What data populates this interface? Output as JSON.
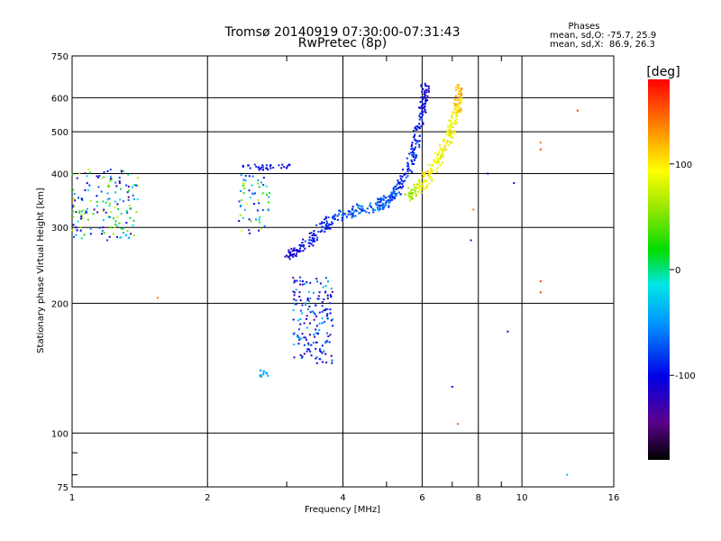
{
  "chart_data": {
    "type": "scatter",
    "title": "Tromsø 20140919 07:30:00-07:31:43",
    "subtitle": "RwPretec (8p)",
    "xlabel": "Frequency [MHz]",
    "ylabel": "Stationary phase Virtual Height [km]",
    "x_scale": "log",
    "y_scale": "log",
    "xlim": [
      1,
      16
    ],
    "ylim": [
      75,
      750
    ],
    "x_ticks": [
      1,
      2,
      4,
      6,
      8,
      10,
      16
    ],
    "x_tick_labels": [
      "1",
      "2",
      "4",
      "6",
      "8",
      "10",
      "16"
    ],
    "y_ticks": [
      75,
      100,
      200,
      300,
      400,
      500,
      600,
      750
    ],
    "y_tick_labels": [
      "75",
      "100",
      "200",
      "300",
      "400",
      "500",
      "600",
      "750"
    ],
    "grid": true,
    "phases_box": {
      "heading": "Phases",
      "line_o": "mean, sd,O: -75.7, 25.9",
      "line_x": "mean, sd,X:  86.9, 26.3"
    },
    "colorbar": {
      "label": "[deg]",
      "min": -180,
      "max": 180,
      "ticks": [
        100,
        0,
        -100
      ],
      "tick_labels": [
        "100",
        "0",
        "-100"
      ],
      "colormap": "rainbow: black-purple-blue-cyan-green-yellow-orange-red"
    },
    "series": [
      {
        "trace": "E/Es region cluster",
        "x_range": [
          1.0,
          1.4
        ],
        "y_range": [
          280,
          410
        ],
        "phase_range": [
          -140,
          80
        ],
        "count": 160,
        "points": [
          [
            1.02,
            300,
            -110
          ],
          [
            1.05,
            350,
            -60
          ],
          [
            1.08,
            380,
            -100
          ],
          [
            1.12,
            330,
            -130
          ],
          [
            1.15,
            395,
            -90
          ],
          [
            1.2,
            360,
            -40
          ],
          [
            1.25,
            310,
            20
          ],
          [
            1.3,
            345,
            -70
          ],
          [
            1.35,
            290,
            -120
          ],
          [
            1.4,
            375,
            60
          ]
        ]
      },
      {
        "trace": "cluster near 2.4 MHz",
        "x_range": [
          2.35,
          2.75
        ],
        "y_range": [
          290,
          400
        ],
        "phase_range": [
          -120,
          100
        ],
        "count": 60,
        "points": [
          [
            2.4,
            380,
            80
          ],
          [
            2.45,
            340,
            100
          ],
          [
            2.5,
            310,
            40
          ],
          [
            2.55,
            360,
            -80
          ],
          [
            2.6,
            295,
            -120
          ]
        ]
      },
      {
        "trace": "upper horizontal line near 415 km",
        "x_range": [
          2.4,
          3.1
        ],
        "y_range": [
          408,
          420
        ],
        "phase_range": [
          -120,
          -80
        ],
        "count": 35,
        "points": [
          [
            2.4,
            415,
            -100
          ],
          [
            2.6,
            414,
            -110
          ],
          [
            2.8,
            413,
            -90
          ],
          [
            3.0,
            412,
            -100
          ]
        ]
      },
      {
        "trace": "low-height spread traces",
        "x_range": [
          3.1,
          3.8
        ],
        "y_range": [
          145,
          230
        ],
        "phase_range": [
          -140,
          -30
        ],
        "count": 170,
        "points": [
          [
            3.15,
            215,
            -40
          ],
          [
            3.3,
            200,
            -50
          ],
          [
            3.45,
            190,
            -45
          ],
          [
            3.6,
            180,
            -35
          ],
          [
            3.25,
            170,
            -120
          ],
          [
            3.4,
            160,
            -90
          ],
          [
            3.5,
            150,
            -60
          ],
          [
            3.7,
            185,
            -50
          ]
        ]
      },
      {
        "trace": "short trace near 2.6 MHz",
        "x_range": [
          2.6,
          2.75
        ],
        "y_range": [
          135,
          140
        ],
        "phase_range": [
          -55,
          -35
        ],
        "count": 12,
        "points": [
          [
            2.62,
            136,
            -45
          ],
          [
            2.7,
            138,
            -45
          ]
        ]
      },
      {
        "trace": "F-region O-trace",
        "x_range": [
          3.0,
          6.2
        ],
        "y_range": [
          255,
          640
        ],
        "phase_range": [
          -120,
          -50
        ],
        "count": 420,
        "points": [
          [
            3.0,
            258,
            -110
          ],
          [
            3.2,
            265,
            -100
          ],
          [
            3.4,
            280,
            -95
          ],
          [
            3.6,
            300,
            -90
          ],
          [
            3.8,
            315,
            -80
          ],
          [
            4.0,
            322,
            -75
          ],
          [
            4.4,
            330,
            -70
          ],
          [
            4.8,
            338,
            -70
          ],
          [
            5.0,
            345,
            -75
          ],
          [
            5.3,
            370,
            -80
          ],
          [
            5.6,
            410,
            -85
          ],
          [
            5.8,
            460,
            -90
          ],
          [
            5.95,
            540,
            -95
          ],
          [
            6.05,
            600,
            -100
          ],
          [
            6.1,
            640,
            -105
          ]
        ]
      },
      {
        "trace": "F-region X-trace",
        "x_range": [
          5.6,
          7.3
        ],
        "y_range": [
          350,
          640
        ],
        "phase_range": [
          40,
          130
        ],
        "count": 260,
        "points": [
          [
            5.6,
            355,
            60
          ],
          [
            5.9,
            370,
            80
          ],
          [
            6.2,
            395,
            100
          ],
          [
            6.5,
            430,
            95
          ],
          [
            6.8,
            470,
            100
          ],
          [
            7.0,
            520,
            90
          ],
          [
            7.2,
            580,
            110
          ],
          [
            7.25,
            630,
            120
          ]
        ]
      },
      {
        "trace": "scattered isolated points",
        "x_range": [
          1.5,
          13.5
        ],
        "y_range": [
          80,
          560
        ],
        "phase_range": [
          -110,
          160
        ],
        "count": 20,
        "points": [
          [
            1.55,
            206,
            140
          ],
          [
            7.2,
            105,
            150
          ],
          [
            7.0,
            128,
            -110
          ],
          [
            8.4,
            400,
            -120
          ],
          [
            9.3,
            172,
            -120
          ],
          [
            9.6,
            380,
            -110
          ],
          [
            11.0,
            472,
            140
          ],
          [
            11.0,
            455,
            160
          ],
          [
            11.0,
            225,
            160
          ],
          [
            11.0,
            212,
            160
          ],
          [
            12.6,
            80,
            -40
          ],
          [
            13.3,
            560,
            160
          ],
          [
            7.8,
            330,
            140
          ],
          [
            7.7,
            280,
            -130
          ]
        ]
      }
    ]
  }
}
